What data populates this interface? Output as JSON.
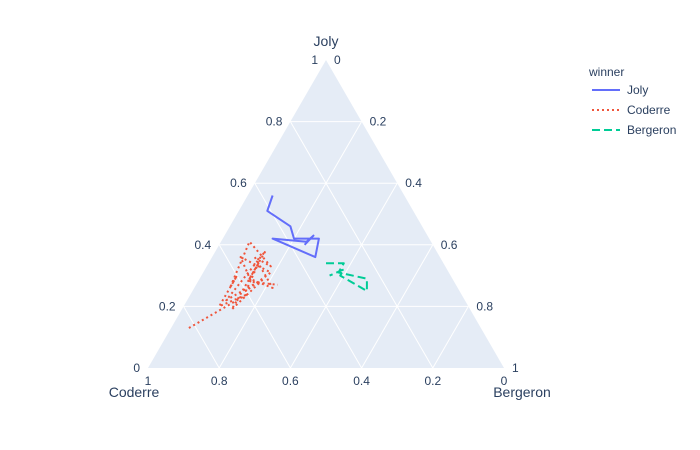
{
  "chart_data": {
    "type": "line",
    "subtype": "ternary",
    "axes": {
      "a": {
        "title": "Joly",
        "ticks": [
          0,
          0.2,
          0.4,
          0.6,
          0.8,
          1
        ]
      },
      "b": {
        "title": "Coderre",
        "ticks": [
          0,
          0.2,
          0.4,
          0.6,
          0.8,
          1
        ]
      },
      "c": {
        "title": "Bergeron",
        "ticks": [
          0,
          0.2,
          0.4,
          0.6,
          0.8,
          1
        ]
      }
    },
    "tick_labels": [
      "0",
      "0.2",
      "0.4",
      "0.6",
      "0.8",
      "1"
    ],
    "grid": true,
    "legend": {
      "title": "winner",
      "placement": "top-right",
      "entries": [
        {
          "name": "Joly",
          "color": "#636efa",
          "dash": "solid"
        },
        {
          "name": "Coderre",
          "color": "#ef553b",
          "dash": "dot"
        },
        {
          "name": "Bergeron",
          "color": "#00cc96",
          "dash": "dash"
        }
      ]
    },
    "series": [
      {
        "name": "Joly",
        "color": "#636efa",
        "dash": "solid",
        "points": [
          {
            "a": 0.56,
            "b": 0.37,
            "c": 0.07
          },
          {
            "a": 0.51,
            "b": 0.41,
            "c": 0.08
          },
          {
            "a": 0.46,
            "b": 0.37,
            "c": 0.17
          },
          {
            "a": 0.42,
            "b": 0.38,
            "c": 0.2
          },
          {
            "a": 0.42,
            "b": 0.31,
            "c": 0.27
          },
          {
            "a": 0.36,
            "b": 0.35,
            "c": 0.29
          },
          {
            "a": 0.42,
            "b": 0.44,
            "c": 0.14
          },
          {
            "a": 0.41,
            "b": 0.35,
            "c": 0.24
          },
          {
            "a": 0.43,
            "b": 0.32,
            "c": 0.25
          },
          {
            "a": 0.4,
            "b": 0.36,
            "c": 0.24
          }
        ]
      },
      {
        "name": "Coderre",
        "color": "#ef553b",
        "dash": "dot",
        "points": [
          {
            "a": 0.13,
            "b": 0.82,
            "c": 0.05
          },
          {
            "a": 0.24,
            "b": 0.6,
            "c": 0.16
          },
          {
            "a": 0.2,
            "b": 0.7,
            "c": 0.1
          },
          {
            "a": 0.3,
            "b": 0.6,
            "c": 0.1
          },
          {
            "a": 0.26,
            "b": 0.64,
            "c": 0.1
          },
          {
            "a": 0.41,
            "b": 0.51,
            "c": 0.08
          },
          {
            "a": 0.33,
            "b": 0.49,
            "c": 0.18
          },
          {
            "a": 0.36,
            "b": 0.52,
            "c": 0.12
          },
          {
            "a": 0.26,
            "b": 0.52,
            "c": 0.22
          },
          {
            "a": 0.29,
            "b": 0.57,
            "c": 0.14
          },
          {
            "a": 0.38,
            "b": 0.48,
            "c": 0.14
          },
          {
            "a": 0.22,
            "b": 0.67,
            "c": 0.11
          },
          {
            "a": 0.29,
            "b": 0.53,
            "c": 0.18
          },
          {
            "a": 0.19,
            "b": 0.67,
            "c": 0.14
          },
          {
            "a": 0.34,
            "b": 0.52,
            "c": 0.14
          },
          {
            "a": 0.25,
            "b": 0.6,
            "c": 0.15
          },
          {
            "a": 0.31,
            "b": 0.5,
            "c": 0.19
          },
          {
            "a": 0.36,
            "b": 0.56,
            "c": 0.08
          },
          {
            "a": 0.28,
            "b": 0.57,
            "c": 0.15
          },
          {
            "a": 0.27,
            "b": 0.5,
            "c": 0.23
          }
        ]
      },
      {
        "name": "Bergeron",
        "color": "#00cc96",
        "dash": "dash",
        "points": [
          {
            "a": 0.34,
            "b": 0.33,
            "c": 0.33
          },
          {
            "a": 0.34,
            "b": 0.28,
            "c": 0.38
          },
          {
            "a": 0.31,
            "b": 0.31,
            "c": 0.38
          },
          {
            "a": 0.29,
            "b": 0.24,
            "c": 0.47
          },
          {
            "a": 0.25,
            "b": 0.26,
            "c": 0.49
          },
          {
            "a": 0.27,
            "b": 0.28,
            "c": 0.45
          },
          {
            "a": 0.3,
            "b": 0.31,
            "c": 0.39
          },
          {
            "a": 0.32,
            "b": 0.29,
            "c": 0.39
          },
          {
            "a": 0.3,
            "b": 0.34,
            "c": 0.36
          }
        ]
      }
    ]
  }
}
